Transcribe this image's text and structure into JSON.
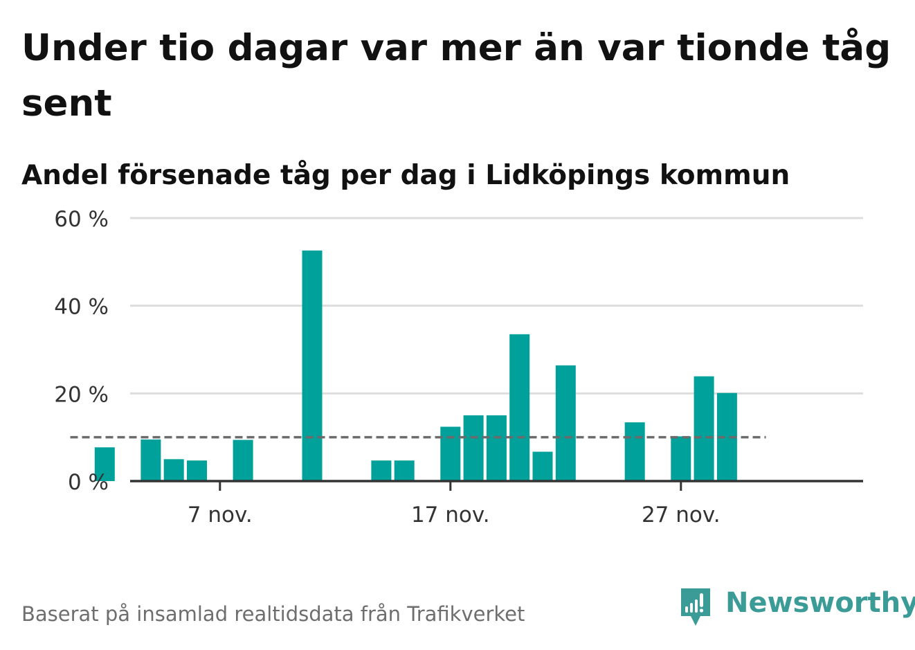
{
  "title": "Under tio dagar var mer än var tionde tåg sent",
  "subtitle": "Andel försenade tåg per dag i Lidköpings kommun",
  "footer": "Baserat på insamlad realtidsdata från Trafikverket",
  "brand": {
    "name": "Newsworthy",
    "icon": "newsworthy-logo-icon",
    "color": "#3b9c97"
  },
  "colors": {
    "bar": "#00a19a",
    "reference_line": "#6b6b6b",
    "grid": "#dddddd",
    "axis": "#333333",
    "tick_text": "#333333"
  },
  "chart_data": {
    "type": "bar",
    "x_unit": "day of November",
    "x_range": [
      1,
      31
    ],
    "x": [
      2,
      4,
      5,
      6,
      8,
      11,
      14,
      15,
      17,
      18,
      19,
      20,
      21,
      22,
      25,
      27,
      28,
      29
    ],
    "values": [
      7.7,
      9.5,
      5.0,
      4.7,
      9.4,
      52.6,
      4.7,
      4.7,
      12.4,
      15.0,
      15.0,
      33.5,
      6.7,
      26.4,
      13.4,
      10.2,
      23.9,
      20.1
    ],
    "reference_value": 10,
    "ylim": [
      0,
      60
    ],
    "yticks": [
      {
        "value": 0,
        "label": "0 %"
      },
      {
        "value": 20,
        "label": "20 %"
      },
      {
        "value": 40,
        "label": "40 %"
      },
      {
        "value": 60,
        "label": "60 %"
      }
    ],
    "xticks": [
      {
        "value": 7,
        "label": "7 nov."
      },
      {
        "value": 17,
        "label": "17 nov."
      },
      {
        "value": 27,
        "label": "27 nov."
      }
    ],
    "grid": true,
    "legend": "none"
  }
}
